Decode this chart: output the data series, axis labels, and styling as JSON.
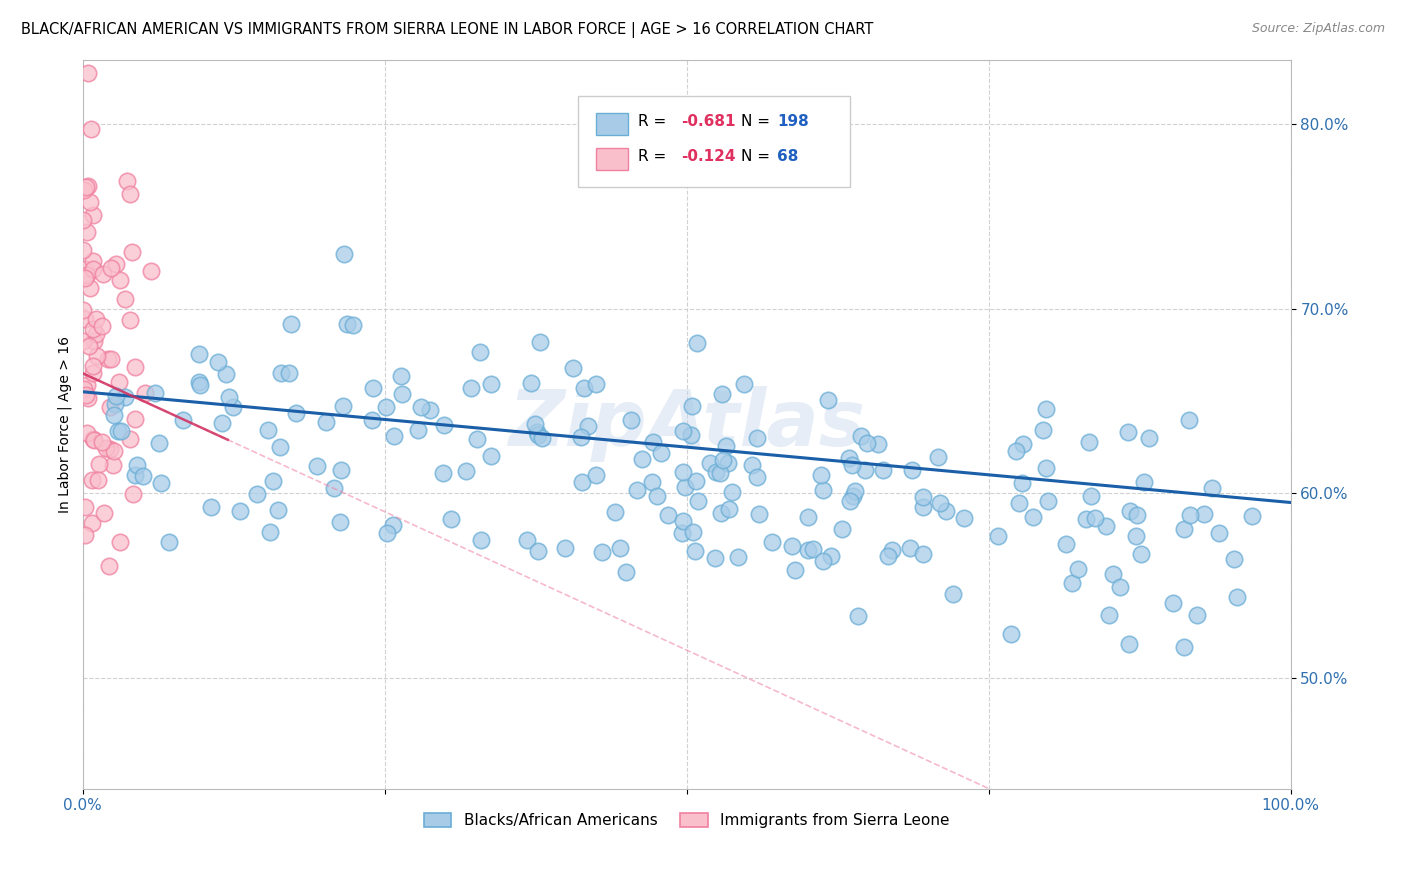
{
  "title": "BLACK/AFRICAN AMERICAN VS IMMIGRANTS FROM SIERRA LEONE IN LABOR FORCE | AGE > 16 CORRELATION CHART",
  "source": "Source: ZipAtlas.com",
  "ylabel": "In Labor Force | Age > 16",
  "xlabel": "",
  "xlim": [
    0.0,
    1.0
  ],
  "ylim": [
    0.44,
    0.835
  ],
  "yticks": [
    0.5,
    0.6,
    0.7,
    0.8
  ],
  "ytick_labels": [
    "50.0%",
    "60.0%",
    "70.0%",
    "80.0%"
  ],
  "xticks": [
    0.0,
    0.25,
    0.5,
    0.75,
    1.0
  ],
  "xtick_labels": [
    "0.0%",
    "",
    "",
    "",
    "100.0%"
  ],
  "blue_R": -0.681,
  "blue_N": 198,
  "pink_R": -0.124,
  "pink_N": 68,
  "blue_color": "#a8cce8",
  "blue_edge_color": "#6aaed6",
  "pink_color": "#f9c0cc",
  "pink_edge_color": "#f080a0",
  "blue_line_color": "#1a5fa8",
  "pink_line_color": "#f080a0",
  "watermark": "ZipAtlas",
  "background_color": "#ffffff",
  "title_fontsize": 11,
  "axis_color": "#3070b0",
  "legend_R_label_color": "#e03060",
  "legend_N_label_color": "#2060c0"
}
